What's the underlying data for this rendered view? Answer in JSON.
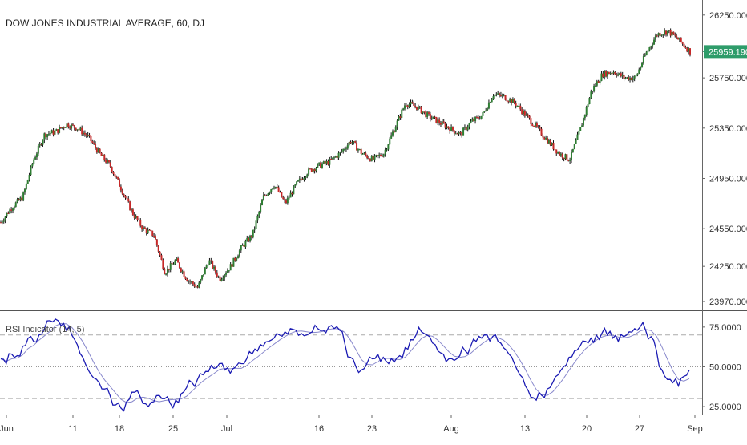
{
  "chart_data": [
    {
      "type": "candlestick",
      "title": "DOW JONES INDUSTRIAL AVERAGE, 60, DJ",
      "symbol": "DJ",
      "interval": "60",
      "last_price": "25959.190",
      "price_axis_ticks": [
        {
          "label": "26250.000",
          "value": 26250
        },
        {
          "label": "25750.000",
          "value": 25750
        },
        {
          "label": "25350.000",
          "value": 25350
        },
        {
          "label": "24950.000",
          "value": 24950
        },
        {
          "label": "24550.000",
          "value": 24550
        },
        {
          "label": "24250.000",
          "value": 24250
        },
        {
          "label": "23970.000",
          "value": 23970
        }
      ],
      "ylim": [
        23900,
        26370
      ],
      "time_ticks": [
        "Jun",
        "11",
        "18",
        "25",
        "Jul",
        "16",
        "23",
        "Aug",
        "13",
        "20",
        "27",
        "Sep"
      ],
      "close_path": [
        [
          "Jun 4",
          24600
        ],
        [
          "Jun 5",
          24720
        ],
        [
          "Jun 6",
          24800
        ],
        [
          "Jun 7",
          25100
        ],
        [
          "Jun 8",
          25300
        ],
        [
          "Jun 11",
          25320
        ],
        [
          "Jun 12",
          25380
        ],
        [
          "Jun 13",
          25350
        ],
        [
          "Jun 14",
          25280
        ],
        [
          "Jun 15",
          25150
        ],
        [
          "Jun 18",
          25050
        ],
        [
          "Jun 19",
          24870
        ],
        [
          "Jun 20",
          24680
        ],
        [
          "Jun 21",
          24550
        ],
        [
          "Jun 22",
          24500
        ],
        [
          "Jun 25",
          24200
        ],
        [
          "Jun 26",
          24300
        ],
        [
          "Jun 27",
          24150
        ],
        [
          "Jun 28",
          24080
        ],
        [
          "Jun 29",
          24300
        ],
        [
          "Jul 2",
          24150
        ],
        [
          "Jul 3",
          24250
        ],
        [
          "Jul 5",
          24400
        ],
        [
          "Jul 6",
          24500
        ],
        [
          "Jul 9",
          24800
        ],
        [
          "Jul 10",
          24900
        ],
        [
          "Jul 11",
          24750
        ],
        [
          "Jul 12",
          24900
        ],
        [
          "Jul 13",
          25000
        ],
        [
          "Jul 16",
          25050
        ],
        [
          "Jul 17",
          25080
        ],
        [
          "Jul 18",
          25150
        ],
        [
          "Jul 19",
          25250
        ],
        [
          "Jul 20",
          25150
        ],
        [
          "Jul 23",
          25100
        ],
        [
          "Jul 24",
          25150
        ],
        [
          "Jul 25",
          25350
        ],
        [
          "Jul 26",
          25550
        ],
        [
          "Jul 27",
          25520
        ],
        [
          "Jul 30",
          25450
        ],
        [
          "Jul 31",
          25400
        ],
        [
          "Aug 1",
          25350
        ],
        [
          "Aug 2",
          25300
        ],
        [
          "Aug 3",
          25400
        ],
        [
          "Aug 6",
          25450
        ],
        [
          "Aug 7",
          25620
        ],
        [
          "Aug 8",
          25600
        ],
        [
          "Aug 9",
          25550
        ],
        [
          "Aug 10",
          25450
        ],
        [
          "Aug 13",
          25350
        ],
        [
          "Aug 14",
          25250
        ],
        [
          "Aug 15",
          25150
        ],
        [
          "Aug 16",
          25100
        ],
        [
          "Aug 17",
          25350
        ],
        [
          "Aug 20",
          25650
        ],
        [
          "Aug 21",
          25780
        ],
        [
          "Aug 22",
          25800
        ],
        [
          "Aug 23",
          25750
        ],
        [
          "Aug 24",
          25750
        ],
        [
          "Aug 27",
          25950
        ],
        [
          "Aug 28",
          26100
        ],
        [
          "Aug 29",
          26120
        ],
        [
          "Aug 30",
          26050
        ],
        [
          "Aug 31",
          25959
        ]
      ]
    },
    {
      "type": "line",
      "title": "RSI Indicator (14, 5)",
      "y_axis_ticks": [
        {
          "label": "75.0000",
          "value": 75
        },
        {
          "label": "50.0000",
          "value": 50
        },
        {
          "label": "25.0000",
          "value": 25
        }
      ],
      "ylim": [
        20,
        85
      ],
      "reference_lines": [
        70,
        50,
        30
      ],
      "series": [
        {
          "color": "#1b1bb3"
        },
        {
          "color": "#8888cc"
        }
      ],
      "values": [
        55,
        52,
        58,
        57,
        63,
        68,
        66,
        70,
        74,
        79,
        80,
        76,
        73,
        70,
        64,
        56,
        48,
        43,
        40,
        36,
        32,
        26,
        24,
        28,
        34,
        35,
        27,
        25,
        28,
        32,
        30,
        27,
        29,
        33,
        37,
        40,
        42,
        45,
        47,
        49,
        52,
        48,
        46,
        50,
        52,
        55,
        58,
        60,
        63,
        66,
        68,
        70,
        72,
        74,
        73,
        71,
        70,
        72,
        74,
        73,
        75,
        74,
        73,
        64,
        56,
        50,
        48,
        52,
        55,
        58,
        56,
        52,
        53,
        57,
        62,
        67,
        70,
        72,
        70,
        65,
        60,
        58,
        55,
        54,
        57,
        60,
        63,
        66,
        68,
        70,
        69,
        66,
        62,
        58,
        52,
        45,
        38,
        31,
        29,
        32,
        36,
        40,
        45,
        50,
        56,
        60,
        63,
        66,
        68,
        70,
        71,
        70,
        68,
        66,
        69,
        72,
        74,
        75,
        73,
        69,
        60,
        48,
        42,
        40,
        38,
        44,
        48
      ]
    }
  ]
}
